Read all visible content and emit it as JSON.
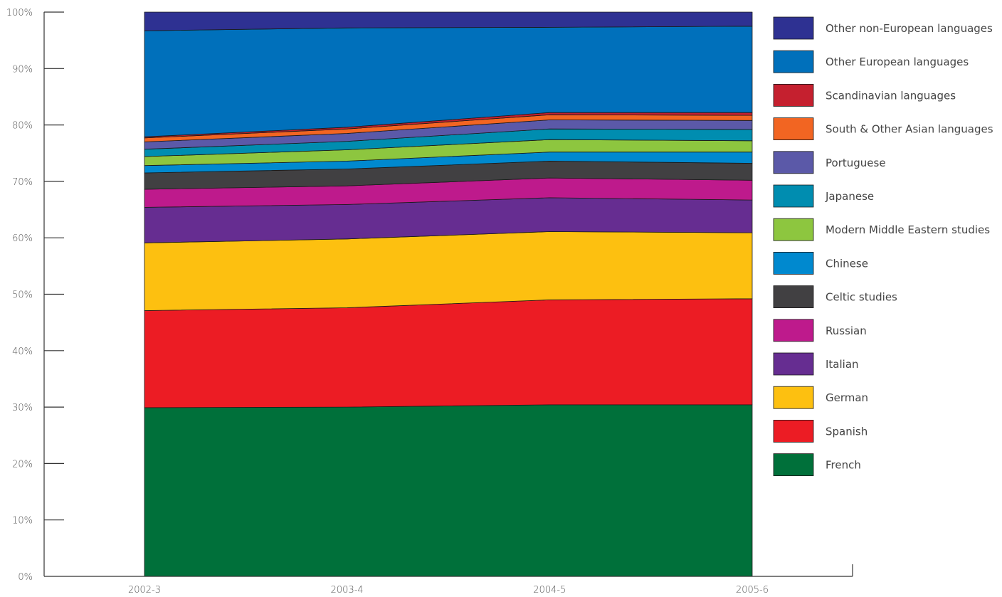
{
  "chart_data": {
    "type": "area",
    "stacked": true,
    "normalized_percent": true,
    "categories": [
      "2002-3",
      "2003-4",
      "2004-5",
      "2005-6"
    ],
    "y_ticks": [
      "0%",
      "10%",
      "20%",
      "30%",
      "40%",
      "50%",
      "60%",
      "70%",
      "80%",
      "90%",
      "100%"
    ],
    "ylim": [
      0,
      100
    ],
    "legend_position": "right",
    "series": [
      {
        "name": "French",
        "color": "#00703a",
        "values": [
          29.9,
          30.0,
          30.4,
          30.4
        ]
      },
      {
        "name": "Spanish",
        "color": "#ec1c24",
        "values": [
          17.2,
          17.6,
          18.6,
          18.8
        ]
      },
      {
        "name": "German",
        "color": "#fdc010",
        "values": [
          12.0,
          12.2,
          12.1,
          11.7
        ]
      },
      {
        "name": "Italian",
        "color": "#662d91",
        "values": [
          6.3,
          6.1,
          6.0,
          5.8
        ]
      },
      {
        "name": "Russian",
        "color": "#be1a8c",
        "values": [
          3.2,
          3.3,
          3.5,
          3.5
        ]
      },
      {
        "name": "Celtic studies",
        "color": "#414042",
        "values": [
          2.9,
          3.0,
          3.0,
          3.0
        ]
      },
      {
        "name": "Chinese",
        "color": "#0089cf",
        "values": [
          1.3,
          1.4,
          1.6,
          2.0
        ]
      },
      {
        "name": "Modern Middle Eastern studies",
        "color": "#8dc63f",
        "values": [
          1.6,
          2.0,
          2.2,
          2.0
        ]
      },
      {
        "name": "Japanese",
        "color": "#008db0",
        "values": [
          1.3,
          1.5,
          1.9,
          2.0
        ]
      },
      {
        "name": "Portuguese",
        "color": "#5b59a8",
        "values": [
          1.3,
          1.4,
          1.6,
          1.6
        ]
      },
      {
        "name": "South & Other Asian languages",
        "color": "#f26522",
        "values": [
          0.7,
          0.8,
          0.9,
          0.9
        ]
      },
      {
        "name": "Scandinavian languages",
        "color": "#c5202f",
        "values": [
          0.2,
          0.3,
          0.4,
          0.5
        ]
      },
      {
        "name": "Other European languages",
        "color": "#0070bb",
        "values": [
          18.8,
          17.6,
          15.1,
          15.3
        ]
      },
      {
        "name": "Other non-European languages",
        "color": "#2e3192",
        "values": [
          3.3,
          2.8,
          2.7,
          2.5
        ]
      }
    ]
  }
}
